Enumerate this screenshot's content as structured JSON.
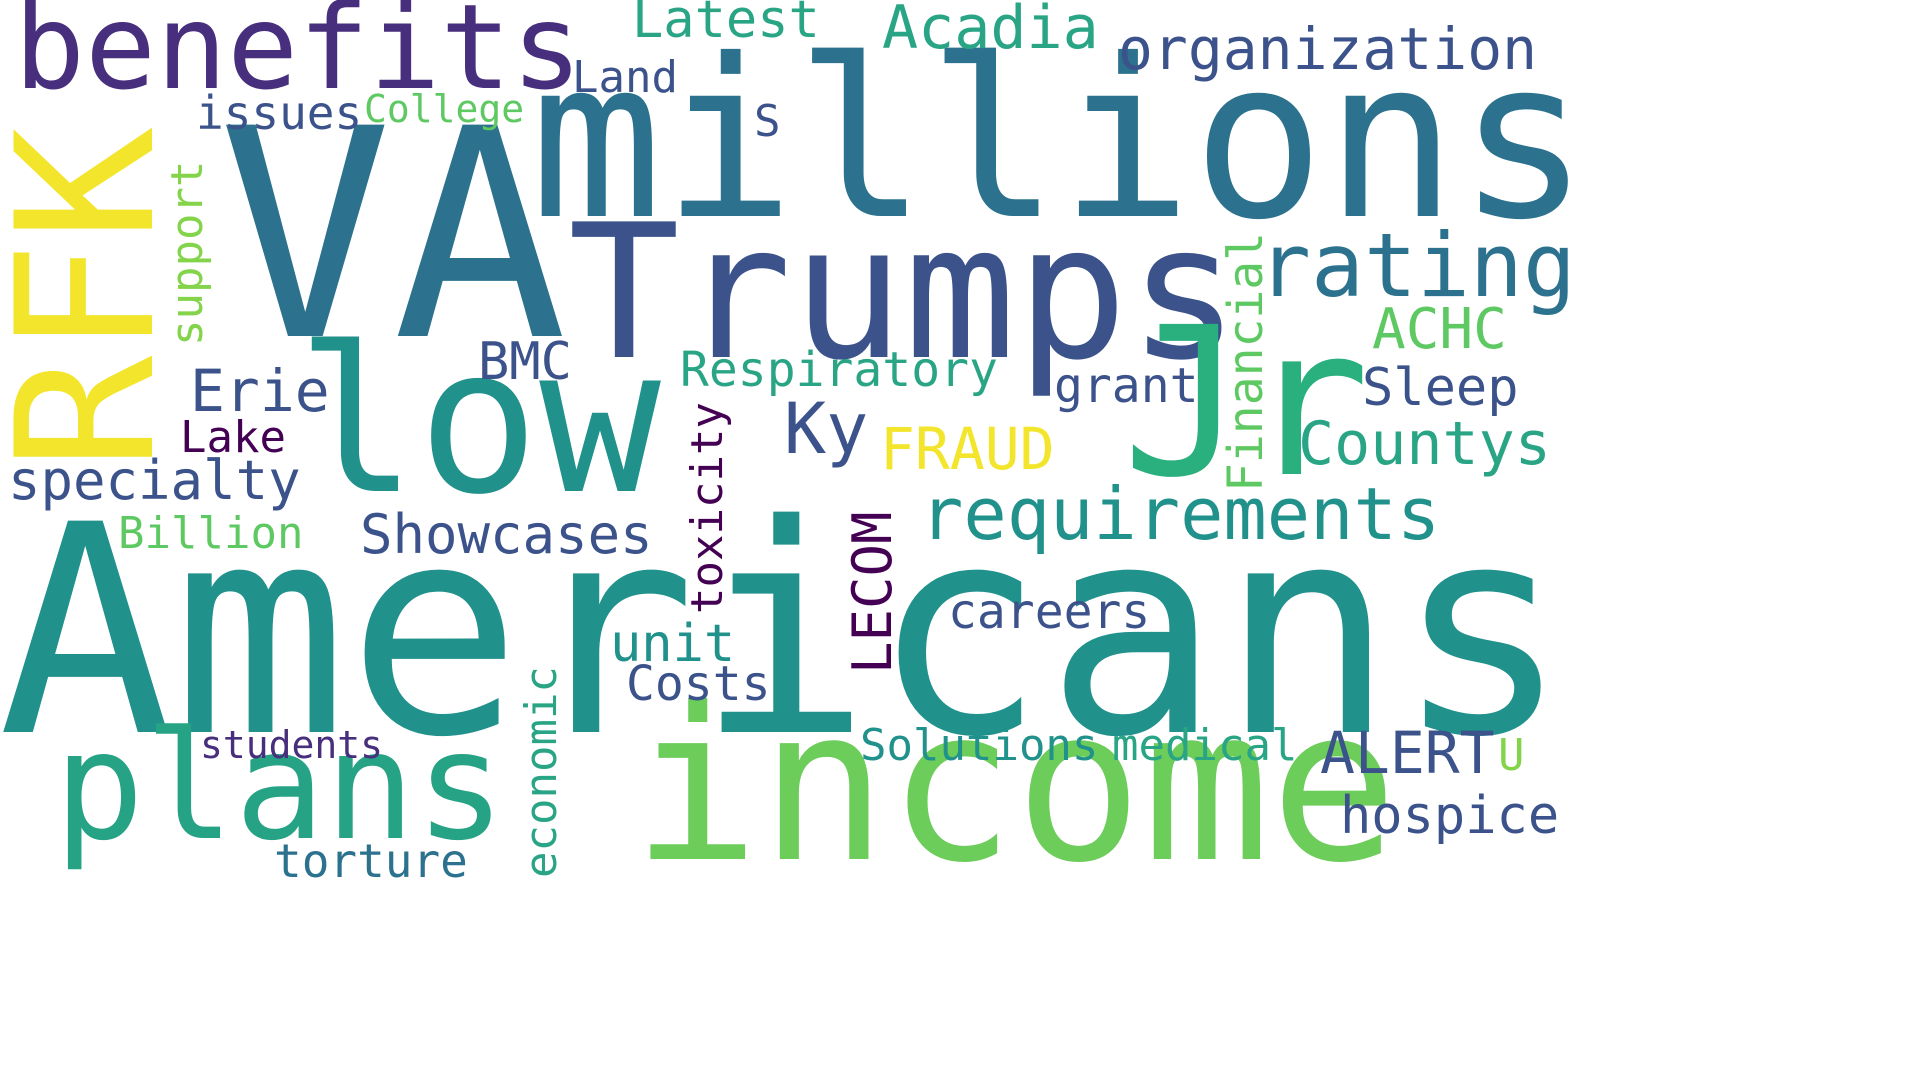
{
  "words": {
    "americans": "Americans",
    "va": "VA",
    "millions": "millions",
    "income": "income",
    "trumps": "Trumps",
    "low": "low",
    "jr": "Jr",
    "rfk": "RFK",
    "benefits": "benefits",
    "plans": "plans",
    "requirements": "requirements",
    "rating": "rating",
    "organization": "organization",
    "acadia": "Acadia",
    "latest": "Latest",
    "countys": "Countys",
    "achc": "ACHC",
    "sleep": "Sleep",
    "fraud": "FRAUD",
    "ky": "Ky",
    "grant": "grant",
    "financial": "Financial",
    "respiratory": "Respiratory",
    "bmc": "BMC",
    "erie": "Erie",
    "lake": "Lake",
    "specialty": "specialty",
    "billion": "Billion",
    "showcases": "Showcases",
    "toxicity": "toxicity",
    "lecom": "LECOM",
    "careers": "careers",
    "unit": "unit",
    "costs": "Costs",
    "economic": "economic",
    "students": "students",
    "torture": "torture",
    "solutions": "Solutions",
    "medical": "medical",
    "alert": "ALERT",
    "u": "U",
    "hospice": "hospice",
    "support": "support",
    "issues": "issues",
    "college": "College",
    "land": "Land",
    "s": "S"
  },
  "colors": {
    "dark_purple": "#440154",
    "indigo": "#3b528b",
    "slate_blue": "#31688e",
    "teal": "#21918c",
    "green_teal": "#29a585",
    "mid_green": "#5ec962",
    "yellow_green": "#84d44b",
    "yellow": "#f3e52b",
    "deep_indigo": "#472f7d"
  }
}
